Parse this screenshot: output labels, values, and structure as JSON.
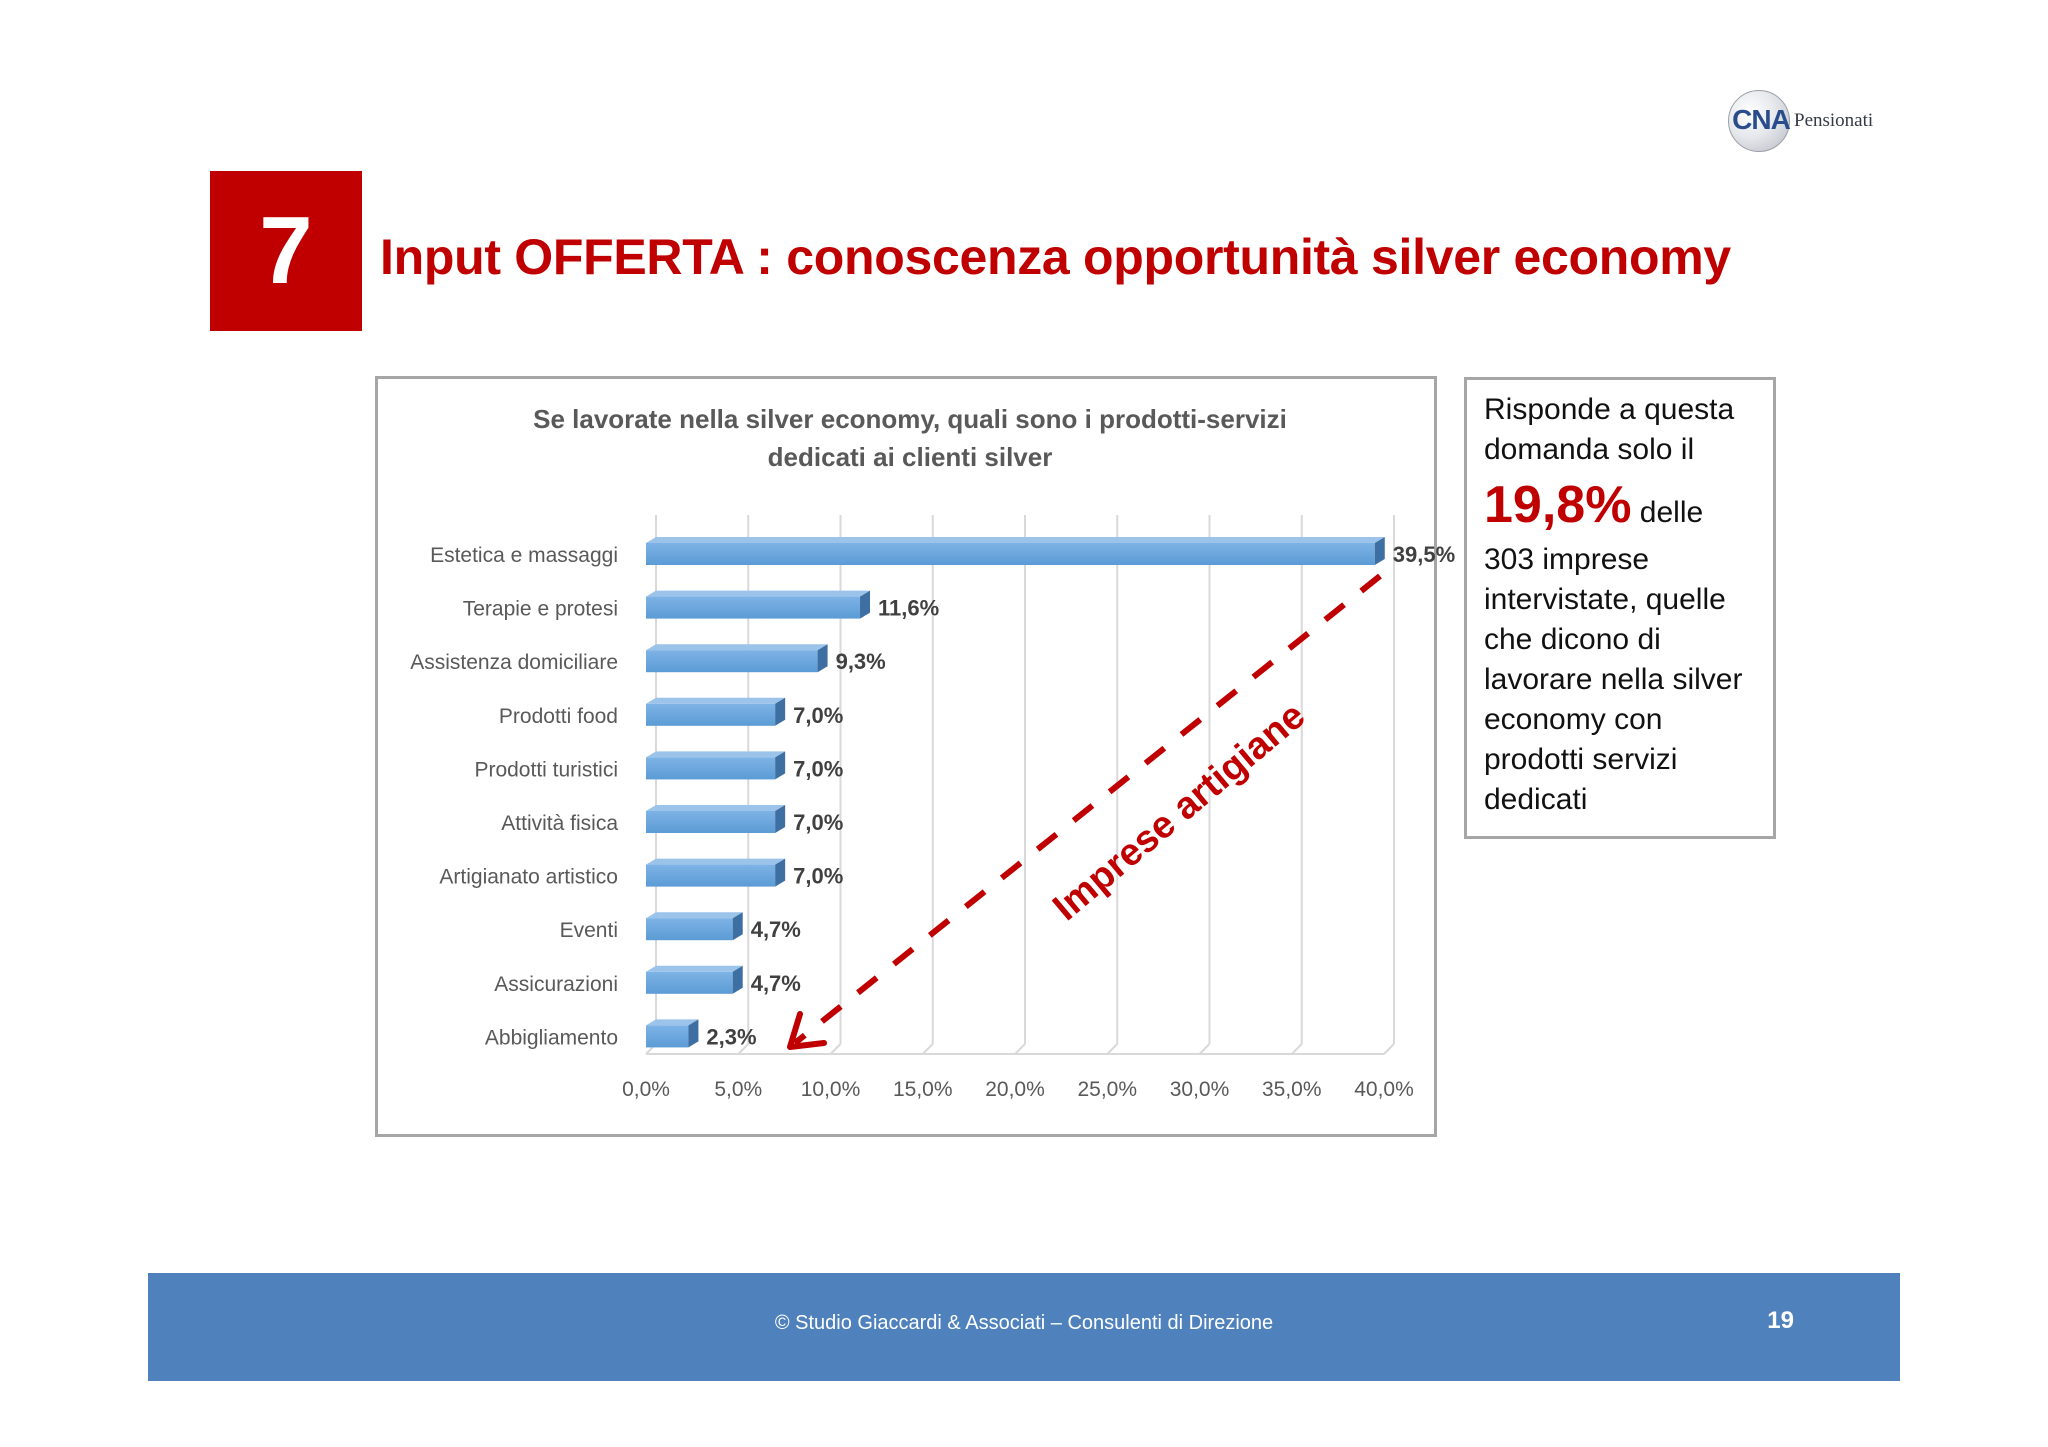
{
  "logo": {
    "mark": "CNA",
    "text": "Pensionati"
  },
  "slide": {
    "number": "7",
    "title": "Input OFFERTA : conoscenza opportunità silver economy"
  },
  "chart_data": {
    "type": "bar",
    "orientation": "horizontal",
    "title_lines": [
      "Se lavorate nella silver economy, quali sono i prodotti-servizi",
      "dedicati ai clienti silver"
    ],
    "categories": [
      "Estetica e massaggi",
      "Terapie e protesi",
      "Assistenza domiciliare",
      "Prodotti food",
      "Prodotti turistici",
      "Attività fisica",
      "Artigianato artistico",
      "Eventi",
      "Assicurazioni",
      "Abbigliamento"
    ],
    "values": [
      39.5,
      11.6,
      9.3,
      7.0,
      7.0,
      7.0,
      7.0,
      4.7,
      4.7,
      2.3
    ],
    "value_labels": [
      "39,5%",
      "11,6%",
      "9,3%",
      "7,0%",
      "7,0%",
      "7,0%",
      "7,0%",
      "4,7%",
      "4,7%",
      "2,3%"
    ],
    "xlim": [
      0,
      40
    ],
    "xticks": [
      "0,0%",
      "5,0%",
      "10,0%",
      "15,0%",
      "20,0%",
      "25,0%",
      "30,0%",
      "35,0%",
      "40,0%"
    ],
    "grid": true,
    "bar_color": "#5b9bd5",
    "annotation": {
      "text": "Imprese artigiane",
      "color": "#c00000",
      "style": "dashed arrow"
    }
  },
  "info": {
    "lines_before": [
      "Risponde a questa",
      "domanda solo il"
    ],
    "highlight": "19,8%",
    "highlight_suffix": "delle",
    "lines_after": [
      "303 imprese",
      "intervistate, quelle",
      "che dicono di",
      "lavorare nella silver",
      "economy con",
      "prodotti servizi",
      "dedicati"
    ]
  },
  "footer": {
    "text": "© Studio Giaccardi & Associati – Consulenti di Direzione",
    "page": "19"
  },
  "colors": {
    "accent": "#c00000",
    "footer": "#4f81bd",
    "bar": "#5b9bd5"
  }
}
